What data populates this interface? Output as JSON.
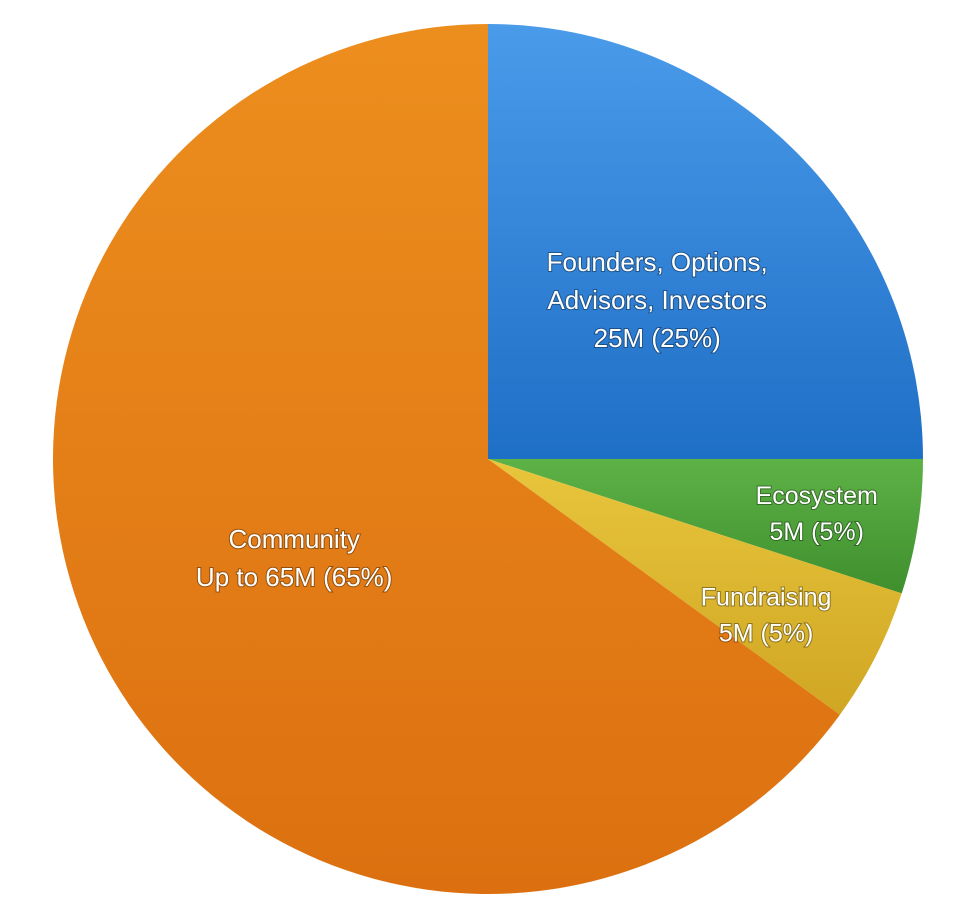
{
  "chart_data": {
    "type": "pie",
    "title": "",
    "start_angle_deg": 0,
    "direction": "clockwise",
    "slices": [
      {
        "name": "Founders, Options, Advisors, Investors",
        "value": 25,
        "label_lines": [
          "Founders, Options,",
          "Advisors, Investors",
          "25M (25%)"
        ],
        "color": "#2F86DD",
        "color_light": "#4A9BEA",
        "color_dark": "#1E6FC6"
      },
      {
        "name": "Ecosystem",
        "value": 5,
        "label_lines": [
          "Ecosystem",
          "5M (5%)"
        ],
        "color": "#4FA23A",
        "color_light": "#5DB246",
        "color_dark": "#3F8F2E"
      },
      {
        "name": "Fundraising",
        "value": 5,
        "label_lines": [
          "Fundraising",
          "5M (5%)"
        ],
        "color": "#E0BA2E",
        "color_light": "#E8C63C",
        "color_dark": "#D0A623"
      },
      {
        "name": "Community",
        "value": 65,
        "label_lines": [
          "Community",
          "Up to 65M (65%)"
        ],
        "color": "#E27D15",
        "color_light": "#EC8E1E",
        "color_dark": "#DC7010"
      }
    ],
    "label_color": "#FFFFFF",
    "legend": "none"
  }
}
